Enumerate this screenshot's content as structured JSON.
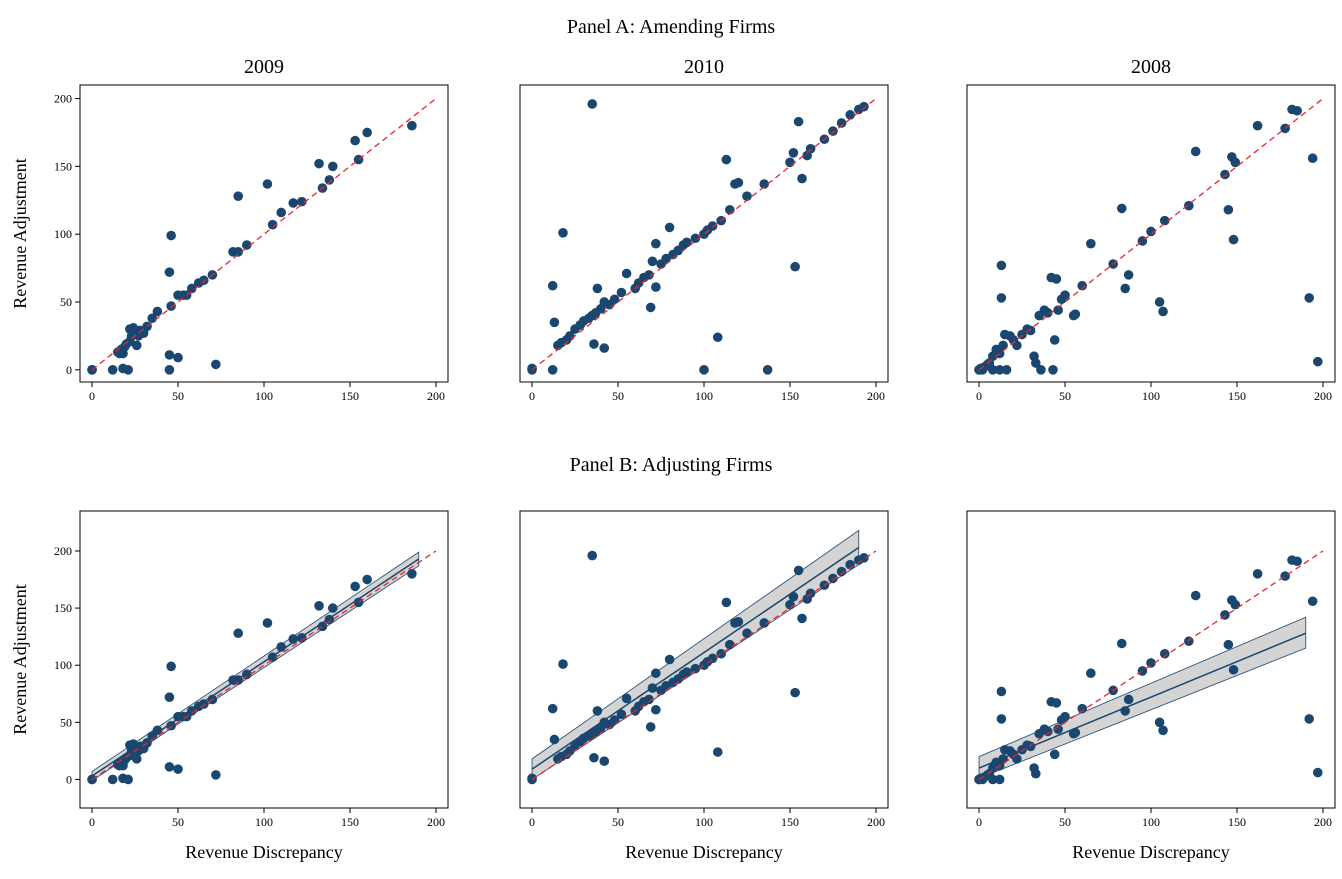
{
  "panels": [
    "Panel A: Amending Firms",
    "Panel B: Adjusting Firms"
  ],
  "chart_data": [
    {
      "type": "scatter",
      "title": "2009",
      "y_label": "Revenue Adjustment",
      "color": "#1a476f",
      "x": [
        0,
        0,
        12,
        15,
        16,
        17,
        18,
        18,
        19,
        20,
        21,
        22,
        22,
        23,
        24,
        25,
        26,
        27,
        28,
        30,
        32,
        35,
        38,
        45,
        45,
        45,
        46,
        46,
        50,
        50,
        53,
        55,
        58,
        62,
        65,
        70,
        72,
        82,
        85,
        85,
        90,
        102,
        105,
        110,
        117,
        122,
        132,
        134,
        138,
        140,
        153,
        155,
        160,
        186
      ],
      "values": [
        0,
        0,
        0,
        13,
        12,
        15,
        1,
        12,
        17,
        19,
        0,
        21,
        30,
        25,
        31,
        28,
        18,
        25,
        29,
        27,
        32,
        38,
        43,
        72,
        0,
        11,
        47,
        99,
        9,
        55,
        55,
        55,
        60,
        64,
        66,
        70,
        4,
        87,
        87,
        128,
        92,
        137,
        107,
        116,
        123,
        124,
        152,
        134,
        140,
        150,
        169,
        155,
        175,
        180
      ],
      "xlim": [
        -7,
        207
      ],
      "ylim": [
        -9,
        210
      ],
      "xticks": [
        0,
        50,
        100,
        150,
        200
      ],
      "yticks": [
        0,
        50,
        100,
        150,
        200
      ],
      "ref_line": {
        "x": [
          0,
          200
        ],
        "y": [
          0,
          200
        ],
        "color": "#e8262b"
      }
    },
    {
      "type": "scatter",
      "title": "2010",
      "color": "#1a476f",
      "x": [
        0,
        0,
        12,
        12,
        13,
        15,
        17,
        18,
        20,
        22,
        25,
        28,
        30,
        33,
        35,
        35,
        36,
        37,
        38,
        40,
        42,
        42,
        45,
        48,
        52,
        55,
        60,
        62,
        65,
        68,
        69,
        70,
        72,
        72,
        75,
        78,
        80,
        82,
        85,
        88,
        90,
        95,
        100,
        100,
        102,
        105,
        108,
        110,
        113,
        115,
        118,
        120,
        125,
        135,
        137,
        150,
        152,
        153,
        155,
        157,
        160,
        162,
        170,
        175,
        180,
        185,
        190,
        193
      ],
      "values": [
        0,
        1,
        62,
        0,
        35,
        18,
        20,
        101,
        22,
        25,
        30,
        33,
        36,
        38,
        196,
        40,
        19,
        42,
        60,
        45,
        16,
        50,
        48,
        52,
        57,
        71,
        60,
        64,
        68,
        70,
        46,
        80,
        61,
        93,
        78,
        82,
        105,
        85,
        88,
        92,
        94,
        97,
        100,
        0,
        103,
        106,
        24,
        110,
        155,
        118,
        137,
        138,
        128,
        137,
        0,
        153,
        160,
        76,
        183,
        141,
        158,
        163,
        170,
        176,
        182,
        188,
        192,
        194
      ],
      "xlim": [
        -7,
        207
      ],
      "ylim": [
        -9,
        210
      ],
      "xticks": [
        0,
        50,
        100,
        150,
        200
      ],
      "ref_line": {
        "x": [
          0,
          200
        ],
        "y": [
          0,
          200
        ],
        "color": "#e8262b"
      }
    },
    {
      "type": "scatter",
      "title": "2008",
      "color": "#1a476f",
      "x": [
        0,
        0,
        1,
        2,
        3,
        5,
        6,
        8,
        8,
        10,
        12,
        12,
        13,
        13,
        14,
        15,
        16,
        18,
        20,
        22,
        25,
        28,
        30,
        32,
        33,
        35,
        36,
        38,
        40,
        42,
        43,
        44,
        45,
        46,
        48,
        50,
        55,
        56,
        60,
        65,
        78,
        83,
        85,
        87,
        95,
        100,
        105,
        107,
        108,
        122,
        126,
        143,
        145,
        147,
        148,
        149,
        162,
        178,
        182,
        185,
        192,
        194,
        197
      ],
      "values": [
        0,
        0,
        1,
        0,
        2,
        4,
        5,
        0,
        10,
        15,
        0,
        12,
        77,
        53,
        18,
        26,
        0,
        25,
        22,
        18,
        26,
        30,
        29,
        10,
        5,
        40,
        0,
        44,
        42,
        68,
        0,
        22,
        67,
        44,
        52,
        55,
        40,
        41,
        62,
        93,
        78,
        119,
        60,
        70,
        95,
        102,
        50,
        43,
        110,
        121,
        161,
        144,
        118,
        157,
        96,
        153,
        180,
        178,
        192,
        191,
        53,
        156,
        6
      ],
      "xlim": [
        -7,
        207
      ],
      "ylim": [
        -9,
        210
      ],
      "xticks": [
        0,
        50,
        100,
        150,
        200
      ],
      "ref_line": {
        "x": [
          0,
          200
        ],
        "y": [
          0,
          200
        ],
        "color": "#e8262b"
      }
    },
    {
      "type": "scatter",
      "x_label": "Revenue Discrepancy",
      "y_label": "Revenue Adjustment",
      "color": "#1a476f",
      "x": [
        0,
        0,
        12,
        15,
        16,
        17,
        18,
        18,
        19,
        20,
        21,
        22,
        22,
        23,
        24,
        25,
        26,
        27,
        28,
        30,
        32,
        35,
        38,
        45,
        45,
        46,
        46,
        50,
        50,
        53,
        55,
        58,
        62,
        65,
        70,
        72,
        82,
        85,
        85,
        90,
        102,
        105,
        110,
        117,
        122,
        132,
        134,
        138,
        140,
        153,
        155,
        160,
        186
      ],
      "values": [
        0,
        0,
        0,
        13,
        12,
        15,
        1,
        12,
        17,
        19,
        0,
        21,
        30,
        25,
        31,
        28,
        18,
        25,
        29,
        27,
        32,
        38,
        43,
        72,
        11,
        47,
        99,
        9,
        55,
        55,
        55,
        60,
        64,
        66,
        70,
        4,
        87,
        87,
        128,
        92,
        137,
        107,
        116,
        123,
        124,
        152,
        134,
        140,
        150,
        169,
        155,
        175,
        180
      ],
      "xlim": [
        -7,
        207
      ],
      "ylim": [
        -25,
        235
      ],
      "xticks": [
        0,
        50,
        100,
        150,
        200
      ],
      "yticks": [
        0,
        50,
        100,
        150,
        200
      ],
      "ref_line": {
        "x": [
          0,
          200
        ],
        "y": [
          0,
          200
        ],
        "color": "#e8262b"
      },
      "fit": {
        "x": [
          0,
          190
        ],
        "y": [
          3,
          193
        ],
        "lower": [
          -1,
          187
        ],
        "upper": [
          7,
          199
        ],
        "color": "#1a476f",
        "band_color": "#d4d4d4"
      }
    },
    {
      "type": "scatter",
      "x_label": "Revenue Discrepancy",
      "color": "#1a476f",
      "x": [
        0,
        0,
        12,
        13,
        15,
        17,
        18,
        20,
        22,
        25,
        28,
        30,
        33,
        35,
        35,
        36,
        37,
        38,
        40,
        42,
        42,
        45,
        48,
        52,
        55,
        60,
        62,
        65,
        68,
        69,
        70,
        72,
        72,
        75,
        78,
        80,
        82,
        85,
        88,
        90,
        95,
        100,
        102,
        105,
        108,
        110,
        113,
        115,
        118,
        120,
        125,
        135,
        150,
        152,
        153,
        155,
        157,
        160,
        162,
        170,
        175,
        180,
        185,
        190,
        193
      ],
      "values": [
        0,
        1,
        62,
        35,
        18,
        20,
        101,
        22,
        25,
        30,
        33,
        36,
        38,
        196,
        40,
        19,
        42,
        60,
        45,
        16,
        50,
        48,
        52,
        57,
        71,
        60,
        64,
        68,
        70,
        46,
        80,
        61,
        93,
        78,
        82,
        105,
        85,
        88,
        92,
        94,
        97,
        100,
        103,
        106,
        24,
        110,
        155,
        118,
        137,
        138,
        128,
        137,
        153,
        160,
        76,
        183,
        141,
        158,
        163,
        170,
        176,
        182,
        188,
        192,
        194
      ],
      "xlim": [
        -7,
        207
      ],
      "ylim": [
        -25,
        235
      ],
      "xticks": [
        0,
        50,
        100,
        150,
        200
      ],
      "ref_line": {
        "x": [
          0,
          200
        ],
        "y": [
          0,
          200
        ],
        "color": "#e8262b"
      },
      "fit": {
        "x": [
          0,
          190
        ],
        "y": [
          9,
          203
        ],
        "lower": [
          0,
          188
        ],
        "upper": [
          18,
          218
        ],
        "color": "#1a476f",
        "band_color": "#d4d4d4"
      }
    },
    {
      "type": "scatter",
      "x_label": "Revenue Discrepancy",
      "color": "#1a476f",
      "x": [
        0,
        0,
        1,
        2,
        3,
        5,
        6,
        8,
        8,
        10,
        12,
        12,
        13,
        13,
        14,
        15,
        18,
        20,
        22,
        25,
        28,
        30,
        32,
        33,
        35,
        38,
        40,
        42,
        44,
        45,
        46,
        48,
        50,
        55,
        56,
        60,
        65,
        78,
        83,
        85,
        87,
        95,
        100,
        105,
        107,
        108,
        122,
        126,
        143,
        145,
        147,
        148,
        149,
        162,
        178,
        182,
        185,
        192,
        194,
        197
      ],
      "values": [
        0,
        0,
        1,
        0,
        2,
        4,
        5,
        0,
        10,
        15,
        0,
        12,
        77,
        53,
        18,
        26,
        25,
        22,
        18,
        26,
        30,
        29,
        10,
        5,
        40,
        44,
        42,
        68,
        22,
        67,
        44,
        52,
        55,
        40,
        41,
        62,
        93,
        78,
        119,
        60,
        70,
        95,
        102,
        50,
        43,
        110,
        121,
        161,
        144,
        118,
        157,
        96,
        153,
        180,
        178,
        192,
        191,
        53,
        156,
        6
      ],
      "xlim": [
        -7,
        207
      ],
      "ylim": [
        -25,
        235
      ],
      "xticks": [
        0,
        50,
        100,
        150,
        200
      ],
      "ref_line": {
        "x": [
          0,
          200
        ],
        "y": [
          0,
          200
        ],
        "color": "#e8262b"
      },
      "fit": {
        "x": [
          0,
          190
        ],
        "y": [
          10,
          128
        ],
        "lower": [
          1,
          115
        ],
        "upper": [
          20,
          142
        ],
        "color": "#1a476f",
        "band_color": "#d4d4d4"
      }
    }
  ]
}
